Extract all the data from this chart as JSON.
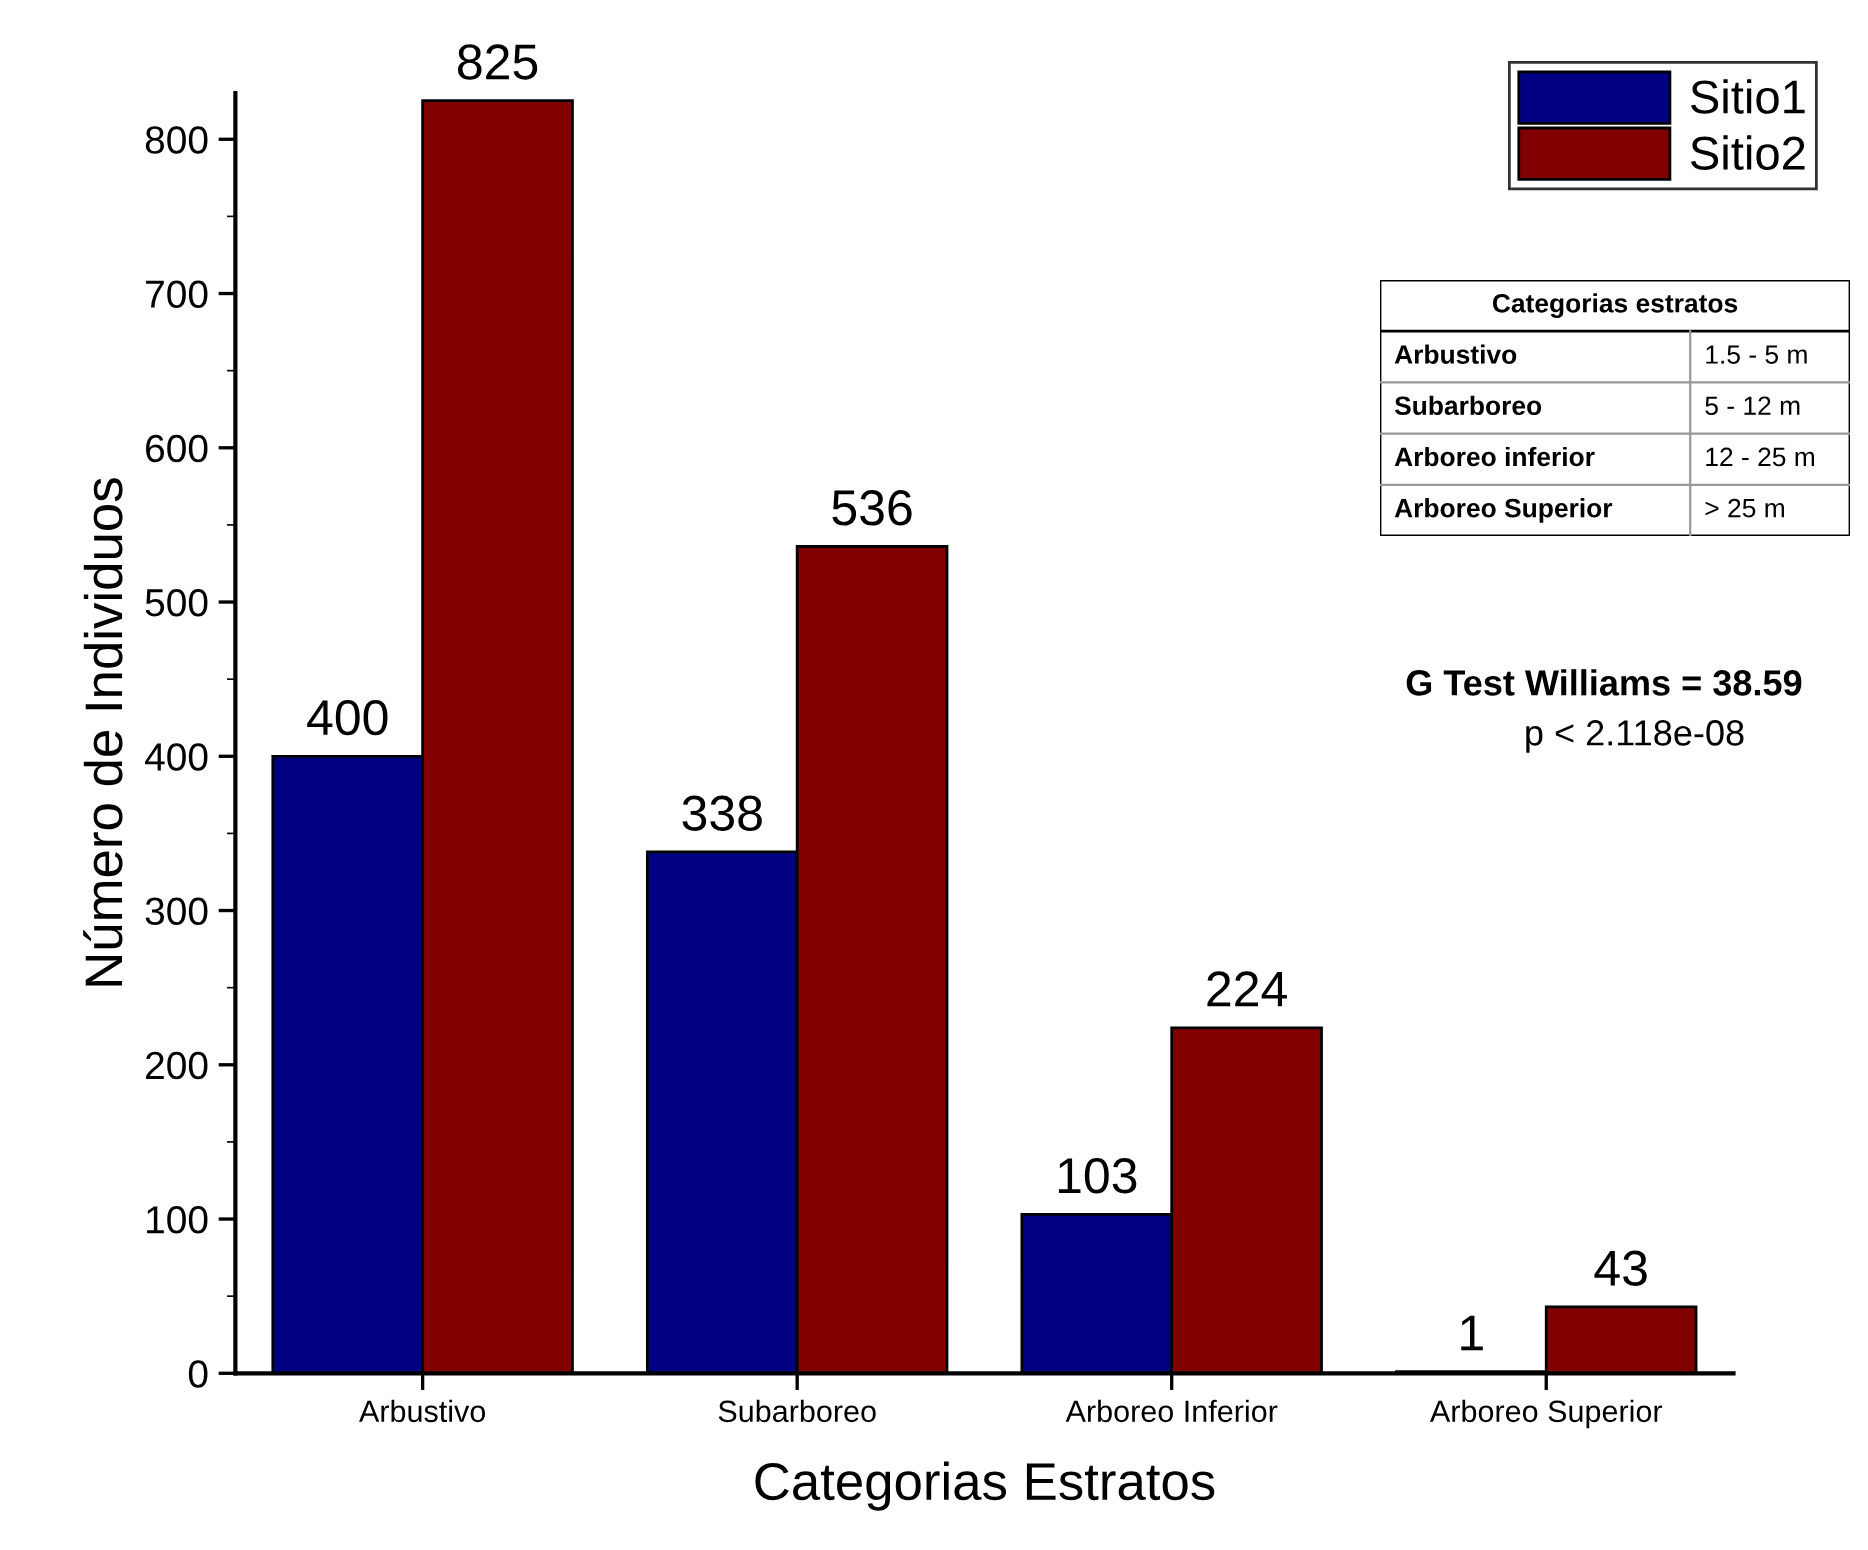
{
  "chart_data": {
    "type": "bar",
    "xlabel": "Categorias Estratos",
    "ylabel": "Número de Individuos",
    "categories": [
      "Arbustivo",
      "Subarboreo",
      "Arboreo Inferior",
      "Arboreo Superior"
    ],
    "series": [
      {
        "name": "Sitio1",
        "color": "#000080",
        "values": [
          400,
          338,
          103,
          1
        ]
      },
      {
        "name": "Sitio2",
        "color": "#800000",
        "values": [
          825,
          536,
          224,
          43
        ]
      }
    ],
    "ylim": [
      0,
      830
    ],
    "yticks": [
      0,
      100,
      200,
      300,
      400,
      500,
      600,
      700,
      800
    ],
    "data_labels": true,
    "legend": "top right",
    "grid": false,
    "annotations": [
      "Categorias estratos",
      "Arbustivo",
      "1.5 - 5 m",
      "Subarboreo",
      "5 - 12 m",
      "Arboreo inferior",
      "12 - 25 m",
      "Arboreo Superior",
      "> 25 m",
      "G Test Williams = 38.59",
      "p < 2.118e-08"
    ]
  }
}
